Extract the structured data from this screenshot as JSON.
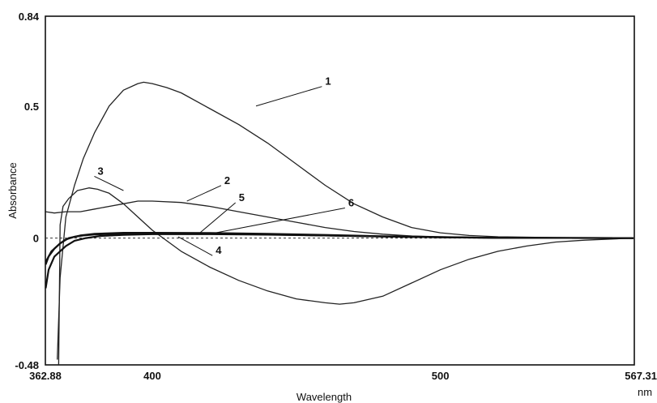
{
  "chart_data": {
    "type": "line",
    "title": "",
    "xlabel": "Wavelength",
    "xunit": "nm",
    "ylabel": "Absorbance",
    "xlim": [
      362.88,
      567.31
    ],
    "ylim": [
      -0.48,
      0.84
    ],
    "x_ticks": [
      {
        "value": 362.88,
        "label": "362.88"
      },
      {
        "value": 400,
        "label": "400"
      },
      {
        "value": 500,
        "label": "500"
      },
      {
        "value": 567.31,
        "label": "567.31"
      }
    ],
    "y_ticks": [
      {
        "value": 0.84,
        "label": "0.84"
      },
      {
        "value": 0.5,
        "label": "0.5"
      },
      {
        "value": 0,
        "label": "0"
      },
      {
        "value": -0.48,
        "label": "-0.48"
      }
    ],
    "zero_line": "dashed",
    "series": [
      {
        "name": "1",
        "style": "thin",
        "x": [
          367,
          368,
          370,
          373,
          376,
          380,
          385,
          390,
          395,
          397,
          400,
          405,
          410,
          420,
          430,
          440,
          450,
          460,
          470,
          480,
          490,
          500,
          510,
          520,
          540,
          567
        ],
        "y": [
          -0.46,
          -0.15,
          0.08,
          0.2,
          0.3,
          0.4,
          0.5,
          0.56,
          0.585,
          0.59,
          0.585,
          0.57,
          0.55,
          0.49,
          0.43,
          0.36,
          0.28,
          0.2,
          0.13,
          0.08,
          0.04,
          0.02,
          0.01,
          0.005,
          0.002,
          0.0
        ]
      },
      {
        "name": "2",
        "style": "thin",
        "x": [
          363,
          366,
          370,
          375,
          380,
          390,
          395,
          400,
          410,
          420,
          430,
          440,
          450,
          460,
          470,
          480,
          490,
          500,
          520,
          567
        ],
        "y": [
          0.1,
          0.095,
          0.1,
          0.1,
          0.11,
          0.13,
          0.14,
          0.14,
          0.135,
          0.12,
          0.1,
          0.08,
          0.06,
          0.04,
          0.025,
          0.015,
          0.008,
          0.005,
          0.002,
          0.0
        ]
      },
      {
        "name": "3",
        "style": "thin",
        "x": [
          367.5,
          368,
          369,
          371,
          374,
          378,
          381,
          385,
          390,
          395,
          400,
          410,
          420,
          430,
          440,
          450,
          460,
          465,
          470,
          480,
          490,
          500,
          510,
          520,
          530,
          540,
          550,
          567
        ],
        "y": [
          -0.48,
          0.05,
          0.12,
          0.15,
          0.18,
          0.19,
          0.185,
          0.17,
          0.13,
          0.08,
          0.03,
          -0.05,
          -0.11,
          -0.16,
          -0.2,
          -0.23,
          -0.245,
          -0.25,
          -0.245,
          -0.22,
          -0.17,
          -0.12,
          -0.08,
          -0.05,
          -0.03,
          -0.015,
          -0.008,
          0.0
        ]
      },
      {
        "name": "4",
        "style": "bold",
        "x": [
          363,
          364,
          366,
          368,
          370,
          373,
          377,
          382,
          390,
          400,
          420,
          440,
          460,
          480,
          500,
          520,
          567
        ],
        "y": [
          -0.19,
          -0.12,
          -0.07,
          -0.05,
          -0.03,
          -0.01,
          0.0,
          0.008,
          0.012,
          0.015,
          0.015,
          0.013,
          0.01,
          0.006,
          0.003,
          0.001,
          0.0
        ]
      },
      {
        "name": "5",
        "style": "bold",
        "x": [
          363,
          364,
          366,
          368,
          370,
          373,
          376,
          380,
          390,
          400,
          420,
          440,
          460,
          480,
          500,
          520,
          567
        ],
        "y": [
          -0.1,
          -0.07,
          -0.04,
          -0.02,
          -0.005,
          0.005,
          0.01,
          0.014,
          0.017,
          0.018,
          0.017,
          0.014,
          0.01,
          0.006,
          0.003,
          0.001,
          0.0
        ]
      },
      {
        "name": "6",
        "style": "bold",
        "x": [
          363,
          365,
          368,
          371,
          375,
          380,
          390,
          400,
          420,
          440,
          460,
          480,
          500,
          520,
          567
        ],
        "y": [
          -0.09,
          -0.05,
          -0.02,
          0.0,
          0.01,
          0.016,
          0.02,
          0.02,
          0.019,
          0.016,
          0.012,
          0.007,
          0.004,
          0.001,
          0.0
        ]
      }
    ],
    "curve_labels": [
      {
        "text": "1",
        "x": 460,
        "y": 0.58,
        "anchor_x": 436,
        "anchor_y": 0.5
      },
      {
        "text": "2",
        "x": 425,
        "y": 0.205,
        "anchor_x": 412,
        "anchor_y": 0.14
      },
      {
        "text": "3",
        "x": 381,
        "y": 0.24,
        "anchor_x": 390,
        "anchor_y": 0.18
      },
      {
        "text": "4",
        "x": 422,
        "y": -0.06,
        "anchor_x": 409,
        "anchor_y": 0.005
      },
      {
        "text": "5",
        "x": 430,
        "y": 0.14,
        "anchor_x": 416,
        "anchor_y": 0.015
      },
      {
        "text": "6",
        "x": 468,
        "y": 0.12,
        "anchor_x": 422,
        "anchor_y": 0.02
      }
    ]
  }
}
